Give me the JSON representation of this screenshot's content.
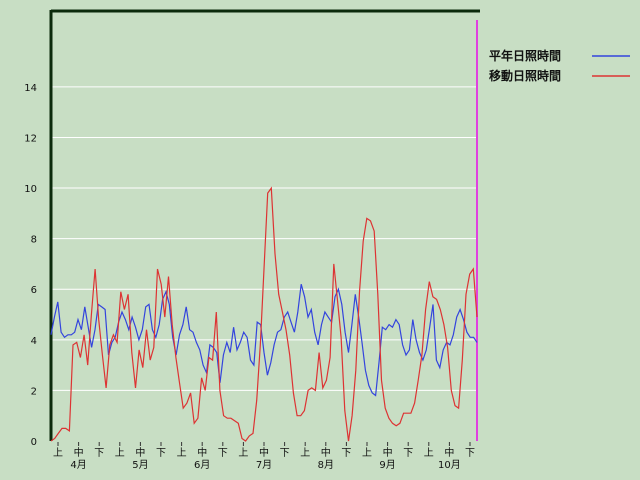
{
  "chart_data": {
    "type": "line",
    "title": "",
    "xlabel": "",
    "ylabel": "",
    "ylim": [
      0,
      17
    ],
    "yticks": [
      0,
      2,
      4,
      6,
      8,
      10,
      12,
      14
    ],
    "grid": true,
    "legend_position": "top-right",
    "x_period_labels": [
      "上",
      "中",
      "下",
      "上",
      "中",
      "下",
      "上",
      "中",
      "下",
      "上",
      "中",
      "下",
      "上",
      "中",
      "下",
      "上",
      "中",
      "下",
      "上",
      "中",
      "下"
    ],
    "x_month_labels": [
      "4月",
      "5月",
      "6月",
      "7月",
      "8月",
      "9月",
      "10月"
    ],
    "x_marker_color": "#e040e0",
    "series": [
      {
        "name": "平年日照時間",
        "color": "#3344dd",
        "values": [
          4.2,
          4.9,
          5.5,
          4.3,
          4.1,
          4.2,
          4.2,
          4.3,
          4.8,
          4.4,
          5.3,
          4.5,
          3.7,
          4.4,
          5.4,
          5.3,
          5.2,
          3.4,
          3.9,
          4.1,
          4.7,
          5.1,
          4.8,
          4.4,
          4.9,
          4.5,
          4.0,
          4.4,
          5.3,
          5.4,
          4.4,
          4.1,
          4.6,
          5.6,
          5.9,
          5.4,
          4.1,
          3.4,
          4.2,
          4.6,
          5.3,
          4.4,
          4.3,
          3.9,
          3.6,
          3.0,
          2.7,
          3.8,
          3.7,
          3.5,
          2.3,
          3.4,
          3.9,
          3.5,
          4.5,
          3.6,
          3.9,
          4.3,
          4.1,
          3.2,
          3.0,
          4.7,
          4.6,
          3.5,
          2.6,
          3.1,
          3.8,
          4.3,
          4.4,
          4.9,
          5.1,
          4.7,
          4.3,
          5.1,
          6.2,
          5.7,
          4.9,
          5.2,
          4.3,
          3.8,
          4.6,
          5.1,
          4.9,
          4.7,
          5.7,
          6.0,
          5.4,
          4.3,
          3.5,
          4.6,
          5.8,
          4.9,
          3.9,
          2.8,
          2.2,
          1.9,
          1.8,
          3.1,
          4.5,
          4.4,
          4.6,
          4.5,
          4.8,
          4.6,
          3.8,
          3.4,
          3.6,
          4.8,
          4.0,
          3.5,
          3.2,
          3.6,
          4.5,
          5.4,
          3.2,
          2.9,
          3.6,
          3.9,
          3.8,
          4.2,
          4.9,
          5.2,
          4.8,
          4.3,
          4.1,
          4.1,
          3.9
        ],
        "range": [
          0,
          4.9
        ]
      },
      {
        "name": "移動日照時間",
        "color": "#dd3333",
        "values": [
          0.0,
          0.1,
          0.3,
          0.5,
          0.5,
          0.4,
          3.8,
          3.9,
          3.3,
          4.2,
          3.0,
          5.0,
          6.8,
          4.8,
          3.4,
          2.1,
          3.8,
          4.2,
          3.9,
          5.9,
          5.2,
          5.8,
          3.5,
          2.1,
          3.6,
          2.9,
          4.4,
          3.2,
          3.7,
          6.8,
          6.2,
          4.9,
          6.5,
          4.6,
          3.3,
          2.3,
          1.3,
          1.5,
          1.9,
          0.7,
          0.9,
          2.5,
          2.0,
          3.3,
          3.2,
          5.1,
          2.0,
          1.0,
          0.9,
          0.9,
          0.8,
          0.7,
          0.1,
          0.0,
          0.2,
          0.3,
          1.6,
          3.8,
          6.8,
          9.8,
          10.0,
          7.4,
          5.8,
          5.1,
          4.4,
          3.4,
          1.9,
          1.0,
          1.0,
          1.2,
          2.0,
          2.1,
          2.0,
          3.5,
          2.1,
          2.4,
          3.3,
          7.0,
          5.6,
          4.1,
          1.2,
          0.0,
          1.0,
          2.8,
          5.9,
          7.9,
          8.8,
          8.7,
          8.3,
          5.8,
          2.4,
          1.3,
          0.9,
          0.7,
          0.6,
          0.7,
          1.1,
          1.1,
          1.1,
          1.5,
          2.4,
          3.4,
          5.2,
          6.3,
          5.7,
          5.6,
          5.2,
          4.6,
          3.7,
          2.0,
          1.4,
          1.3,
          3.2,
          5.8,
          6.6,
          6.8,
          4.9
        ],
        "range": [
          0,
          4.9
        ]
      }
    ]
  }
}
